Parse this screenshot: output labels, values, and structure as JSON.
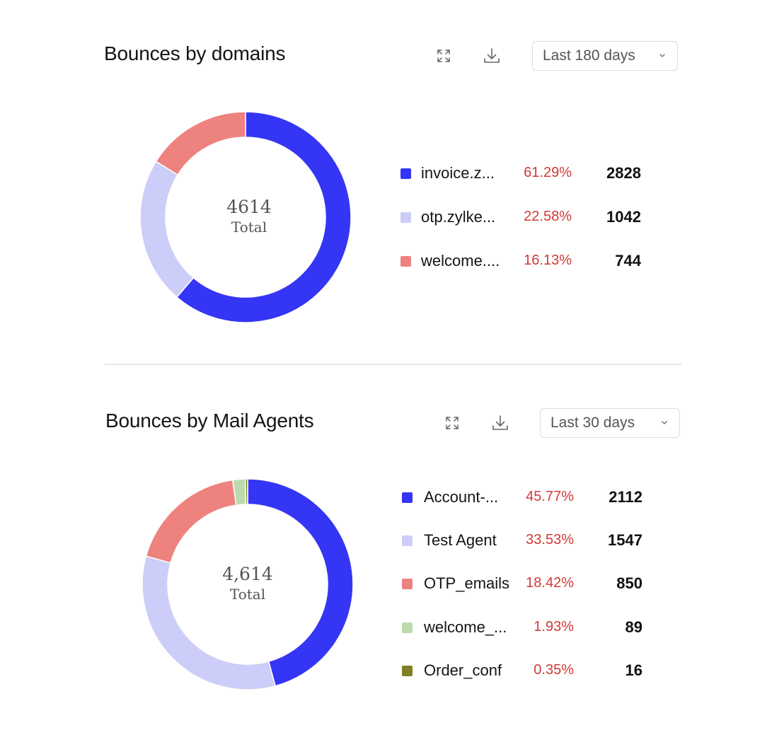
{
  "sections": [
    {
      "title": "Bounces by domains",
      "expand_icon": "expand-icon",
      "download_icon": "download-icon",
      "period": {
        "selected": "Last 180 days",
        "icon": "chevron-down-icon"
      },
      "center": {
        "value": "4614",
        "label": "Total"
      },
      "legend": [
        {
          "name": "invoice.z...",
          "pct": "61.29%",
          "count": "2828",
          "color": "#3535f5"
        },
        {
          "name": "otp.zylke...",
          "pct": "22.58%",
          "count": "1042",
          "color": "#cccdf8"
        },
        {
          "name": "welcome....",
          "pct": "16.13%",
          "count": "744",
          "color": "#ee827e"
        }
      ]
    },
    {
      "title": "Bounces by Mail Agents",
      "expand_icon": "expand-icon",
      "download_icon": "download-icon",
      "period": {
        "selected": "Last 30 days",
        "icon": "chevron-down-icon"
      },
      "center": {
        "value": "4,614",
        "label": "Total"
      },
      "legend": [
        {
          "name": "Account-...",
          "pct": "45.77%",
          "count": "2112",
          "color": "#3535f5"
        },
        {
          "name": "Test Agent",
          "pct": "33.53%",
          "count": "1547",
          "color": "#cccdf8"
        },
        {
          "name": "OTP_emails",
          "pct": "18.42%",
          "count": "850",
          "color": "#ee827e"
        },
        {
          "name": "welcome_...",
          "pct": "1.93%",
          "count": "89",
          "color": "#bcdaae"
        },
        {
          "name": "Order_conf",
          "pct": "0.35%",
          "count": "16",
          "color": "#7f7f26"
        }
      ]
    }
  ],
  "chart_data": [
    {
      "type": "pie",
      "subtype": "donut",
      "title": "Bounces by domains",
      "period": "Last 180 days",
      "total": 4614,
      "center_label": "Total",
      "categories": [
        "invoice.z...",
        "otp.zylke...",
        "welcome...."
      ],
      "values": [
        2828,
        1042,
        744
      ],
      "percentages": [
        61.29,
        22.58,
        16.13
      ],
      "colors": [
        "#3535f5",
        "#cccdf8",
        "#ee827e"
      ],
      "legend_position": "right"
    },
    {
      "type": "pie",
      "subtype": "donut",
      "title": "Bounces by Mail Agents",
      "period": "Last 30 days",
      "total": 4614,
      "center_label": "Total",
      "categories": [
        "Account-...",
        "Test Agent",
        "OTP_emails",
        "welcome_...",
        "Order_conf"
      ],
      "values": [
        2112,
        1547,
        850,
        89,
        16
      ],
      "percentages": [
        45.77,
        33.53,
        18.42,
        1.93,
        0.35
      ],
      "colors": [
        "#3535f5",
        "#cccdf8",
        "#ee827e",
        "#bcdaae",
        "#7f7f26"
      ],
      "legend_position": "right"
    }
  ]
}
